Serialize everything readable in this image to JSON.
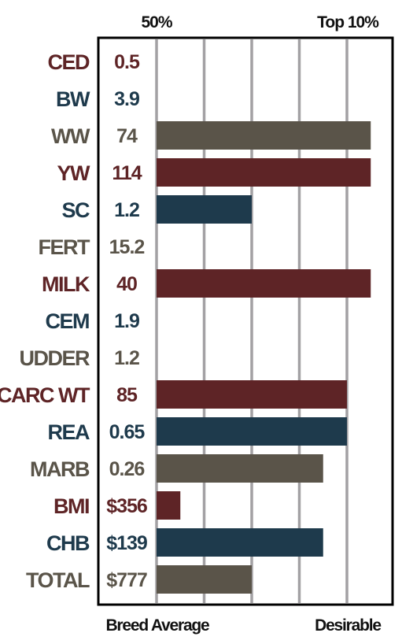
{
  "chart_data": {
    "type": "bar",
    "orientation": "horizontal",
    "header_labels": {
      "left": "50%",
      "right": "Top 10%"
    },
    "footer_labels": {
      "left": "Breed Average",
      "right": "Desirable"
    },
    "xlim": [
      0,
      5
    ],
    "grid": true,
    "colors": {
      "red": "#5e2426",
      "blue": "#1e3a4c",
      "olive": "#5a5449"
    },
    "rows": [
      {
        "trait": "CED",
        "value": "0.5",
        "bar": 0,
        "color": "red"
      },
      {
        "trait": "BW",
        "value": "3.9",
        "bar": 0,
        "color": "blue"
      },
      {
        "trait": "WW",
        "value": "74",
        "bar": 4.5,
        "color": "olive"
      },
      {
        "trait": "YW",
        "value": "114",
        "bar": 4.5,
        "color": "red"
      },
      {
        "trait": "SC",
        "value": "1.2",
        "bar": 2,
        "color": "blue"
      },
      {
        "trait": "FERT",
        "value": "15.2",
        "bar": 0,
        "color": "olive"
      },
      {
        "trait": "MILK",
        "value": "40",
        "bar": 4.5,
        "color": "red"
      },
      {
        "trait": "CEM",
        "value": "1.9",
        "bar": 0,
        "color": "blue"
      },
      {
        "trait": "UDDER",
        "value": "1.2",
        "bar": 0,
        "color": "olive"
      },
      {
        "trait": "CARC WT",
        "value": "85",
        "bar": 4,
        "color": "red"
      },
      {
        "trait": "REA",
        "value": "0.65",
        "bar": 4,
        "color": "blue"
      },
      {
        "trait": "MARB",
        "value": "0.26",
        "bar": 3.5,
        "color": "olive"
      },
      {
        "trait": "BMI",
        "value": "$356",
        "bar": 0.5,
        "color": "red"
      },
      {
        "trait": "CHB",
        "value": "$139",
        "bar": 3.5,
        "color": "blue"
      },
      {
        "trait": "TOTAL",
        "value": "$777",
        "bar": 2,
        "color": "olive"
      }
    ]
  }
}
